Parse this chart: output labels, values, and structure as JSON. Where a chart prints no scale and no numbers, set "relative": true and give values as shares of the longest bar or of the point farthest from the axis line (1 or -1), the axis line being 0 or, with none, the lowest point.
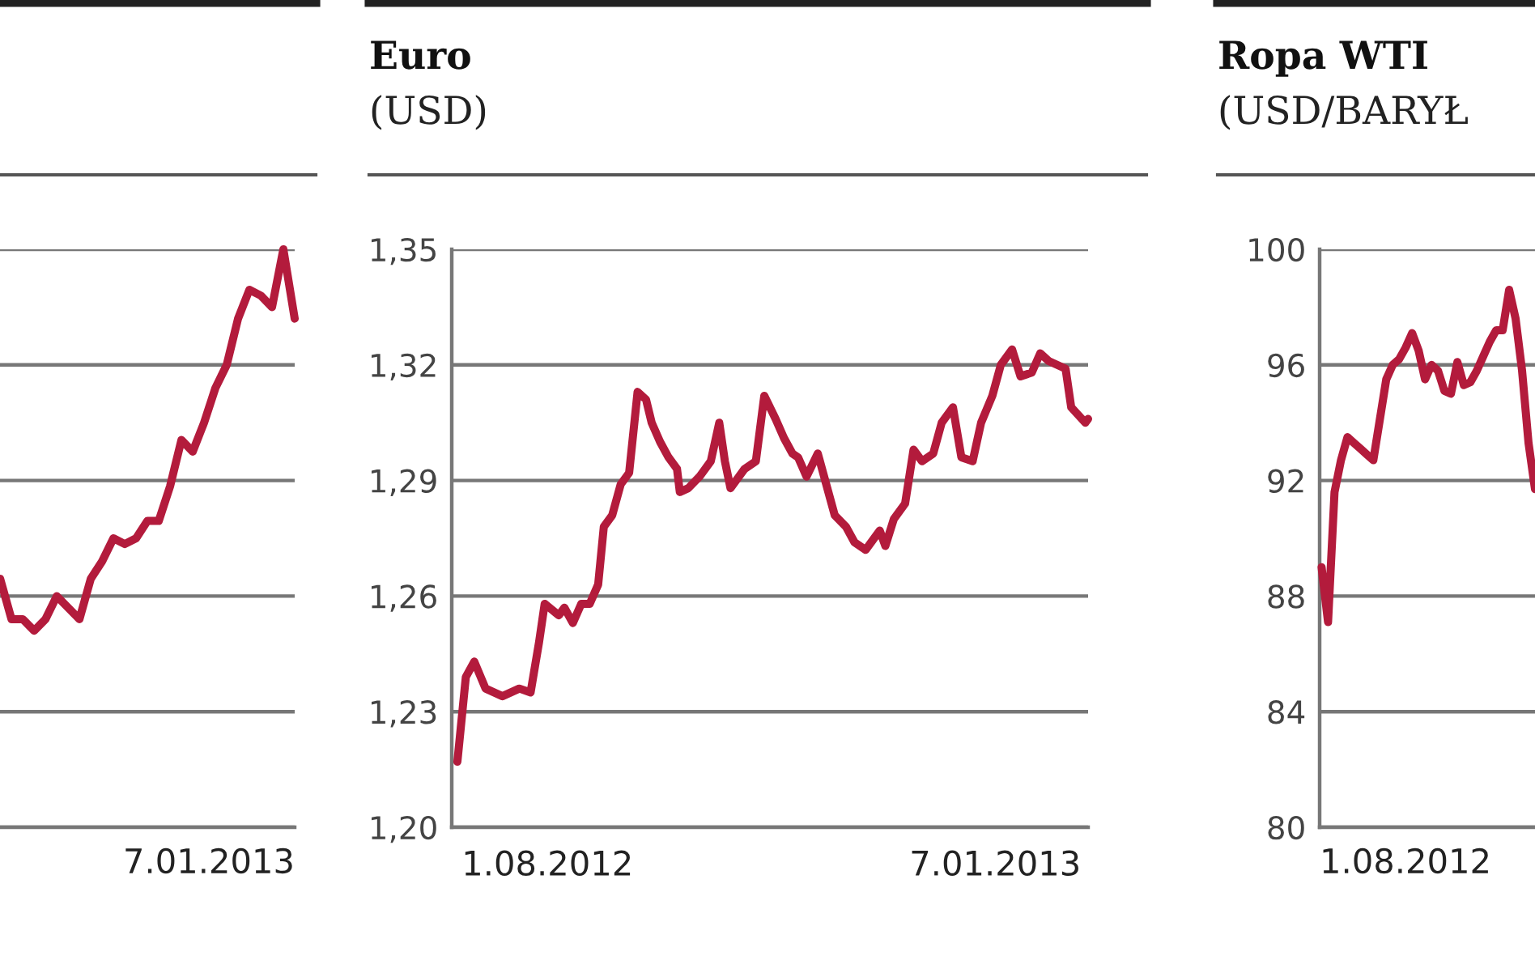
{
  "chart_data": [
    {
      "type": "line",
      "relative": true,
      "grid": "y",
      "tick_labels": false,
      "annotations": [
        "7.01.2013"
      ],
      "categories": [
        null,
        null,
        null,
        null,
        null,
        null,
        null,
        null,
        null,
        null,
        null,
        null,
        null,
        null,
        null,
        null,
        null,
        null,
        null,
        null,
        null,
        null,
        null,
        null,
        null,
        null,
        null
      ],
      "series": [
        {
          "color": "#b31b3c",
          "values": [
            0.43,
            0.36,
            0.36,
            0.34,
            0.36,
            0.4,
            0.38,
            0.36,
            0.43,
            0.46,
            0.5,
            0.49,
            0.5,
            0.53,
            0.53,
            0.59,
            0.67,
            0.65,
            0.7,
            0.76,
            0.8,
            0.88,
            0.93,
            0.92,
            0.9,
            1,
            0.88
          ]
        }
      ]
    },
    {
      "type": "line",
      "title": "Euro",
      "subtitle": "(USD)",
      "grid": "y",
      "xlim": [
        "2012-06-28",
        "2013-02-09"
      ],
      "xticks": [
        {
          "value": "2012-08-01",
          "label": "1.08.2012"
        },
        {
          "value": "2013-01-07",
          "label": "7.01.2013"
        }
      ],
      "ylim": [
        1.2,
        1.35
      ],
      "yticks": [
        {
          "value": 1.2,
          "label": "1,20"
        },
        {
          "value": 1.23,
          "label": "1,23"
        },
        {
          "value": 1.26,
          "label": "1,26"
        },
        {
          "value": 1.29,
          "label": "1,29"
        },
        {
          "value": 1.32,
          "label": "1,32"
        },
        {
          "value": 1.35,
          "label": "1,35"
        }
      ],
      "series": [
        {
          "color": "#b31b3c",
          "x": [
            "2012-06-30",
            "2012-07-03",
            "2012-07-06",
            "2012-07-10",
            "2012-07-16",
            "2012-07-22",
            "2012-07-26",
            "2012-07-29",
            "2012-07-31",
            "2012-08-05",
            "2012-08-07",
            "2012-08-10",
            "2012-08-13",
            "2012-08-16",
            "2012-08-19",
            "2012-08-21",
            "2012-08-24",
            "2012-08-27",
            "2012-08-30",
            "2012-09-02",
            "2012-09-05",
            "2012-09-07",
            "2012-09-10",
            "2012-09-13",
            "2012-09-16",
            "2012-09-17",
            "2012-09-20",
            "2012-09-24",
            "2012-09-28",
            "2012-10-01",
            "2012-10-03",
            "2012-10-05",
            "2012-10-10",
            "2012-10-14",
            "2012-10-17",
            "2012-10-21",
            "2012-10-24",
            "2012-10-27",
            "2012-10-29",
            "2012-11-01",
            "2012-11-05",
            "2012-11-08",
            "2012-11-11",
            "2012-11-15",
            "2012-11-18",
            "2012-11-22",
            "2012-11-27",
            "2012-11-29",
            "2012-12-02",
            "2012-12-06",
            "2012-12-09",
            "2012-12-12",
            "2012-12-16",
            "2012-12-19",
            "2012-12-23",
            "2012-12-26",
            "2012-12-30",
            "2013-01-02",
            "2013-01-06",
            "2013-01-09",
            "2013-01-13",
            "2013-01-16",
            "2013-01-20",
            "2013-01-23",
            "2013-01-26",
            "2013-02-01",
            "2013-02-03",
            "2013-02-08",
            "2013-02-09"
          ],
          "values": [
            1.217,
            1.239,
            1.243,
            1.236,
            1.234,
            1.236,
            1.235,
            1.248,
            1.258,
            1.255,
            1.257,
            1.253,
            1.258,
            1.258,
            1.263,
            1.278,
            1.281,
            1.289,
            1.292,
            1.313,
            1.311,
            1.305,
            1.3,
            1.296,
            1.293,
            1.287,
            1.288,
            1.291,
            1.295,
            1.305,
            1.295,
            1.288,
            1.293,
            1.295,
            1.312,
            1.306,
            1.301,
            1.297,
            1.296,
            1.291,
            1.297,
            1.289,
            1.281,
            1.278,
            1.274,
            1.272,
            1.277,
            1.273,
            1.28,
            1.284,
            1.298,
            1.295,
            1.297,
            1.305,
            1.309,
            1.296,
            1.295,
            1.305,
            1.312,
            1.32,
            1.324,
            1.317,
            1.318,
            1.323,
            1.321,
            1.319,
            1.309,
            1.305,
            1.306
          ]
        }
      ]
    },
    {
      "type": "line",
      "title": "Ropa WTI",
      "subtitle": "(USD/BARYŁ",
      "grid": "y",
      "tick_labels": "y",
      "annotations": [
        "1.08.2012"
      ],
      "ylim": [
        80,
        100
      ],
      "yticks": [
        80,
        84,
        88,
        92,
        96,
        100
      ],
      "categories": [
        null,
        null,
        null,
        null,
        null,
        null,
        null,
        null,
        null,
        null,
        null,
        null,
        null,
        null,
        null,
        null,
        null,
        null,
        null,
        null,
        null,
        null,
        null,
        null,
        null,
        null,
        null,
        null,
        null,
        null,
        null,
        null,
        null,
        null
      ],
      "series": [
        {
          "color": "#b31b3c",
          "values": [
            89.0,
            87.1,
            91.6,
            92.7,
            93.5,
            93.3,
            93.1,
            92.9,
            92.7,
            94.1,
            95.5,
            96.0,
            96.2,
            96.6,
            97.1,
            96.5,
            95.5,
            96.0,
            95.8,
            95.1,
            95.0,
            96.1,
            95.3,
            95.4,
            95.8,
            96.3,
            96.8,
            97.2,
            97.2,
            98.6,
            97.6,
            95.8,
            93.3,
            91.7
          ]
        }
      ]
    }
  ]
}
